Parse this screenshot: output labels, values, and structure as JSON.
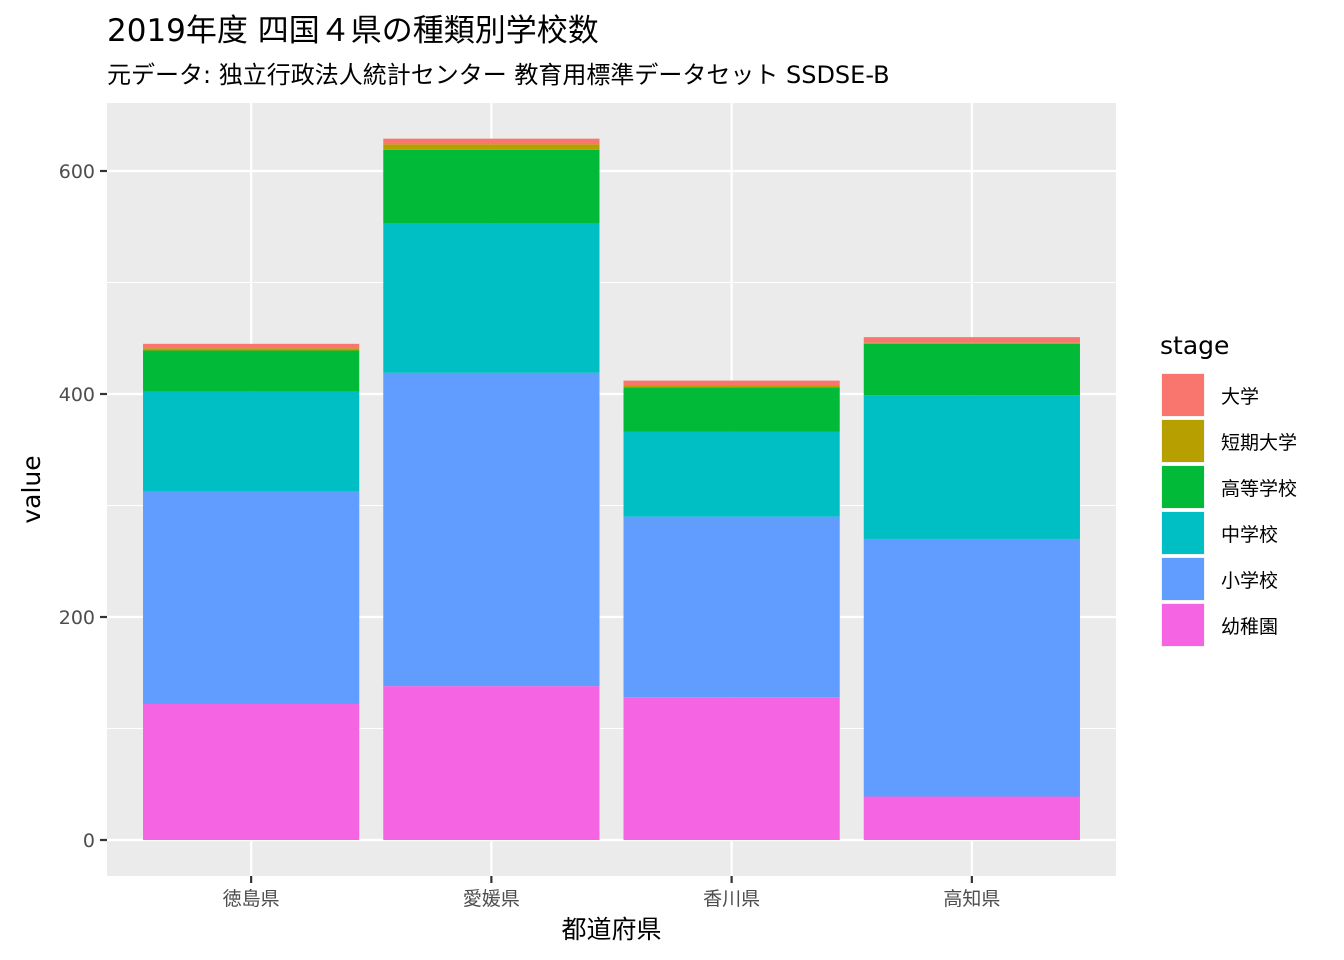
{
  "chart_data": {
    "type": "bar",
    "stacked": true,
    "title": "2019年度 四国４県の種類別学校数",
    "subtitle": "元データ: 独立行政法人統計センター 教育用標準データセット SSDSE-B",
    "xlabel": "都道府県",
    "ylabel": "value",
    "ylim": [
      -30,
      655
    ],
    "yticks": [
      0,
      200,
      400,
      600
    ],
    "grid": true,
    "legend_position": "right",
    "legend_title": "stage",
    "categories": [
      "徳島県",
      "愛媛県",
      "香川県",
      "高知県"
    ],
    "series": [
      {
        "name": "幼稚園",
        "color": "#F564E3",
        "values": [
          122,
          138,
          128,
          39
        ]
      },
      {
        "name": "小学校",
        "color": "#619CFF",
        "values": [
          191,
          281,
          162,
          231
        ]
      },
      {
        "name": "中学校",
        "color": "#00BFC4",
        "values": [
          89,
          134,
          76,
          129
        ]
      },
      {
        "name": "高等学校",
        "color": "#00BA38",
        "values": [
          37,
          66,
          40,
          46
        ]
      },
      {
        "name": "短期大学",
        "color": "#B79F00",
        "values": [
          2,
          5,
          2,
          1
        ]
      },
      {
        "name": "大学",
        "color": "#F8766D",
        "values": [
          4,
          5,
          4,
          5
        ]
      }
    ],
    "legend_order": [
      "大学",
      "短期大学",
      "高等学校",
      "中学校",
      "小学校",
      "幼稚園"
    ]
  }
}
